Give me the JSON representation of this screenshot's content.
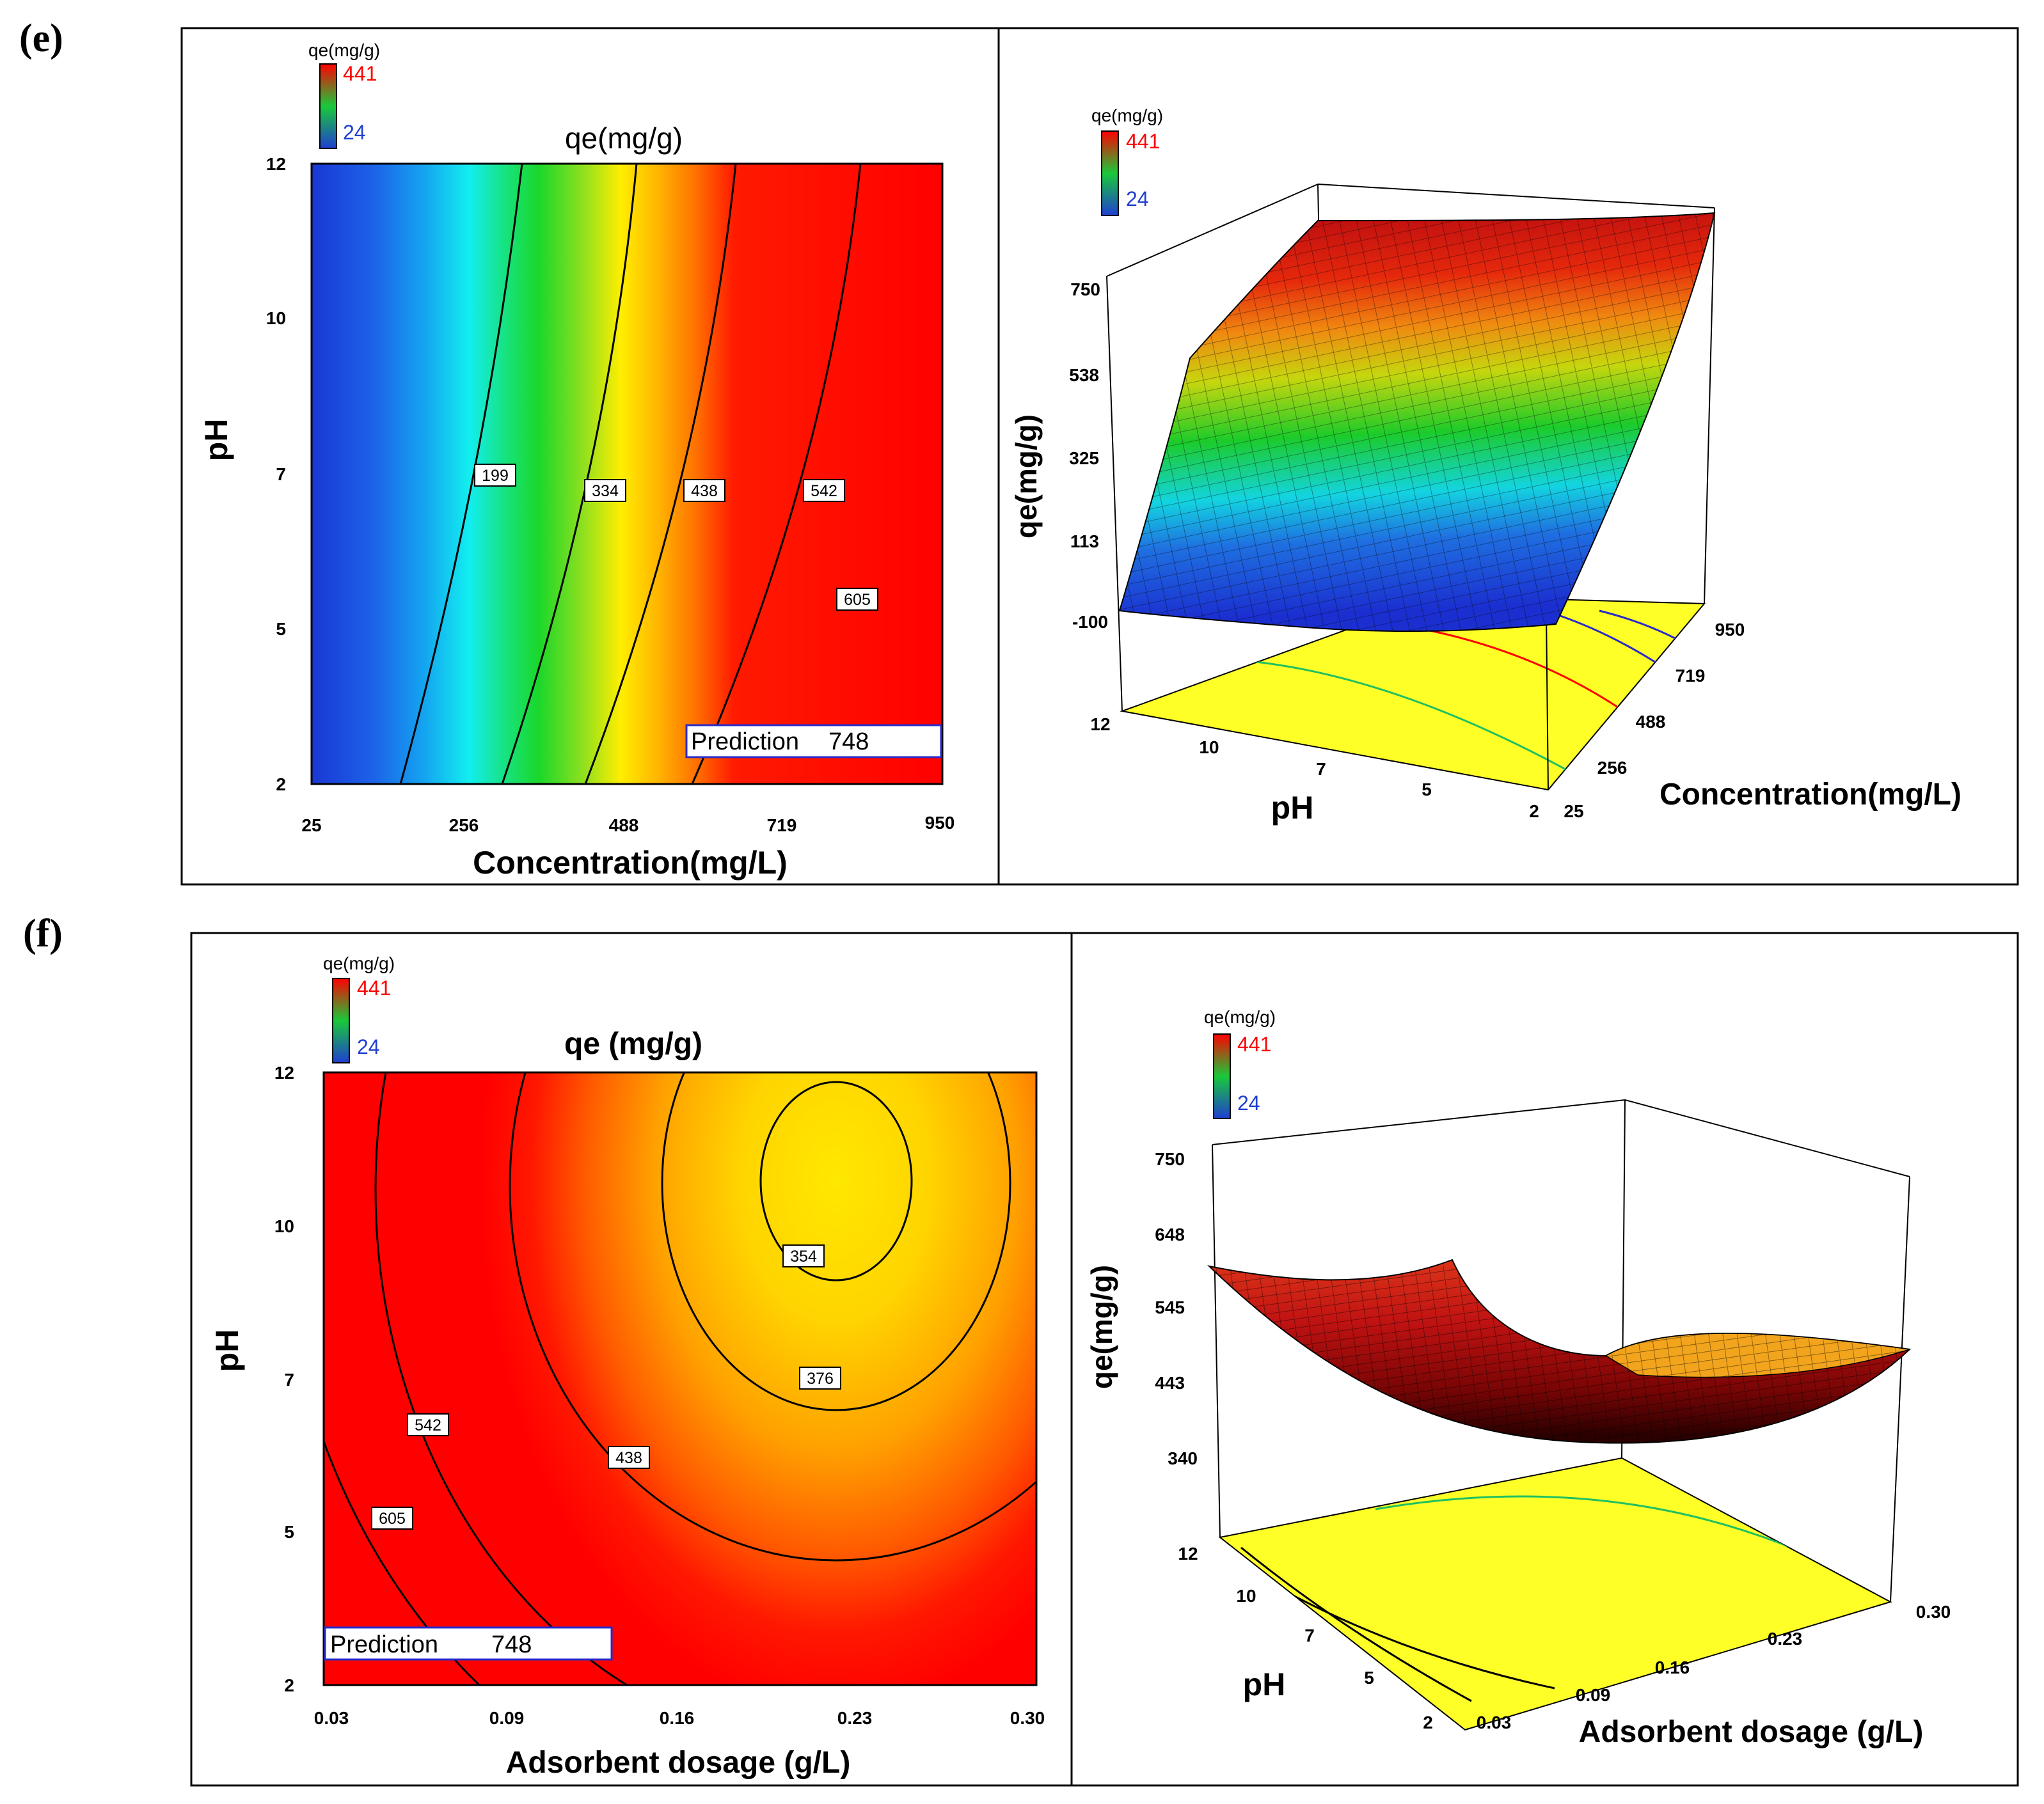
{
  "colors": {
    "low": "#1f3fd0",
    "mid": "#19c93a",
    "high": "#ff0000",
    "floor": "#ffff28",
    "pred_border": "#2a2ac8"
  },
  "panels": {
    "e": {
      "label": "(e)",
      "contour": {
        "chart_data": {
          "type": "heatmap",
          "title": "qe(mg/g)",
          "xlabel": "Concentration(mg/L)",
          "ylabel": "pH",
          "xlim": [
            25,
            950
          ],
          "ylim": [
            2,
            12
          ],
          "xticks": [
            "25",
            "256",
            "488",
            "719",
            "950"
          ],
          "yticks": [
            "2",
            "5",
            "7",
            "10",
            "12"
          ],
          "legend": {
            "title": "qe(mg/g)",
            "max": "441",
            "min": "24"
          },
          "contours": [
            {
              "label": "199",
              "label_x": 310,
              "label_y": 7
            },
            {
              "label": "334",
              "label_x": 485,
              "label_y": 7
            },
            {
              "label": "438",
              "label_x": 625,
              "label_y": 7
            },
            {
              "label": "542",
              "label_x": 805,
              "label_y": 7
            },
            {
              "label": "605",
              "label_x": 882,
              "label_y": 5.5
            }
          ],
          "prediction": {
            "label": "Prediction",
            "value": "748"
          }
        }
      },
      "surface": {
        "chart_data": {
          "type": "surface",
          "legend": {
            "title": "qe(mg/g)",
            "max": "441",
            "min": "24"
          },
          "zlabel": "qe(mg/g)",
          "zticks": [
            "750",
            "538",
            "325",
            "113",
            "-100"
          ],
          "xlabel": "Concentration(mg/L)",
          "xticks": [
            "25",
            "256",
            "488",
            "719",
            "950"
          ],
          "ylabel": "pH",
          "yticks": [
            "2",
            "5",
            "7",
            "10",
            "12"
          ]
        }
      }
    },
    "f": {
      "label": "(f)",
      "contour": {
        "chart_data": {
          "type": "heatmap",
          "title": "qe (mg/g)",
          "xlabel": "Adsorbent dosage (g/L)",
          "ylabel": "pH",
          "xlim": [
            0.03,
            0.3
          ],
          "ylim": [
            2,
            12
          ],
          "xticks": [
            "0.03",
            "0.09",
            "0.16",
            "0.23",
            "0.30"
          ],
          "yticks": [
            "2",
            "5",
            "7",
            "10",
            "12"
          ],
          "legend": {
            "title": "qe(mg/g)",
            "max": "441",
            "min": "24"
          },
          "contours": [
            {
              "label": "354",
              "label_x": 0.215,
              "label_y": 9.5
            },
            {
              "label": "376",
              "label_x": 0.221,
              "label_y": 7.0
            },
            {
              "label": "438",
              "label_x": 0.148,
              "label_y": 6.0
            },
            {
              "label": "542",
              "label_x": 0.07,
              "label_y": 6.5
            },
            {
              "label": "605",
              "label_x": 0.056,
              "label_y": 5.2
            }
          ],
          "prediction": {
            "label": "Prediction",
            "value": "748"
          }
        }
      },
      "surface": {
        "chart_data": {
          "type": "surface",
          "legend": {
            "title": "qe(mg/g)",
            "max": "441",
            "min": "24"
          },
          "zlabel": "qe(mg/g)",
          "zticks": [
            "750",
            "648",
            "545",
            "443",
            "340"
          ],
          "xlabel": "Adsorbent dosage (g/L)",
          "xticks": [
            "0.03",
            "0.09",
            "0.16",
            "0.23",
            "0.30"
          ],
          "ylabel": "pH",
          "yticks": [
            "2",
            "5",
            "7",
            "10",
            "12"
          ]
        }
      }
    }
  }
}
